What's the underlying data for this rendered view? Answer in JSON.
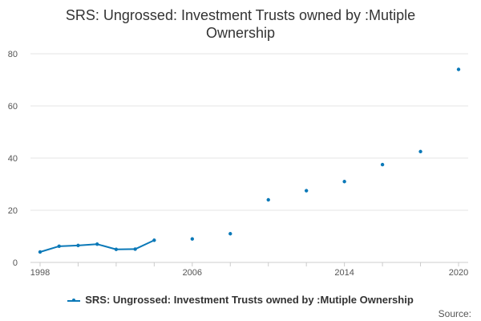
{
  "chart_data": {
    "type": "line",
    "title": "SRS: Ungrossed: Investment Trusts owned by :Mutiple Ownership",
    "xlabel": "",
    "ylabel": "",
    "xlim": [
      1998,
      2020
    ],
    "ylim": [
      0,
      80
    ],
    "x_ticks": [
      1998,
      2006,
      2014,
      2020
    ],
    "y_ticks": [
      0,
      20,
      40,
      60,
      80
    ],
    "grid": true,
    "legend_position": "bottom",
    "series": [
      {
        "name": "SRS: Ungrossed: Investment Trusts owned by :Mutiple Ownership",
        "color": "#0b79b8",
        "points": [
          {
            "x": 1998,
            "y": 4.0
          },
          {
            "x": 1999,
            "y": 6.2
          },
          {
            "x": 2000,
            "y": 6.5
          },
          {
            "x": 2001,
            "y": 7.0
          },
          {
            "x": 2002,
            "y": 5.0
          },
          {
            "x": 2003,
            "y": 5.1
          },
          {
            "x": 2004,
            "y": 8.5
          },
          {
            "x": 2006,
            "y": 9.0
          },
          {
            "x": 2008,
            "y": 11.0
          },
          {
            "x": 2010,
            "y": 24.0
          },
          {
            "x": 2012,
            "y": 27.5
          },
          {
            "x": 2014,
            "y": 31.0
          },
          {
            "x": 2016,
            "y": 37.5
          },
          {
            "x": 2018,
            "y": 42.5
          },
          {
            "x": 2020,
            "y": 74.0
          }
        ]
      }
    ]
  },
  "source_label": "Source:"
}
